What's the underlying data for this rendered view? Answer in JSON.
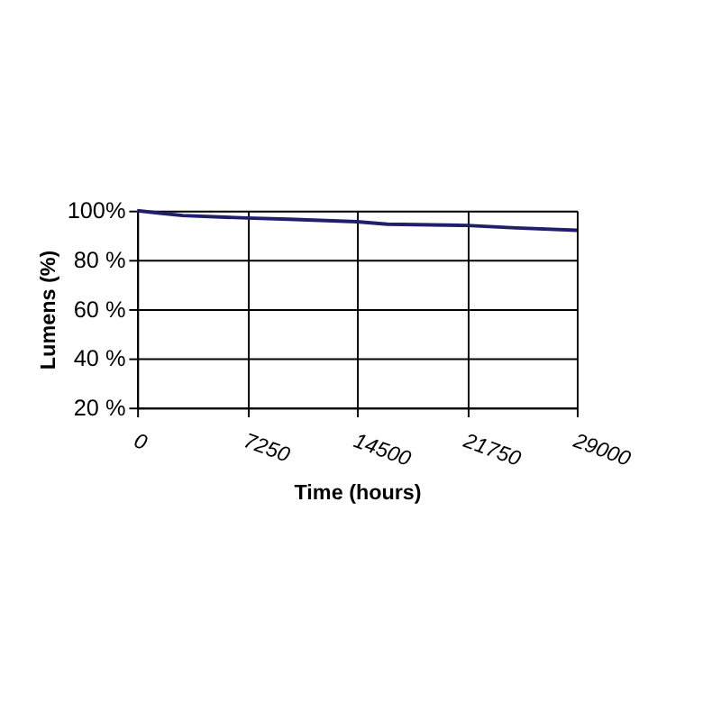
{
  "chart_data": {
    "type": "line",
    "xlabel": "Time (hours)",
    "ylabel": "Lumens (%)",
    "x": [
      0,
      1500,
      3000,
      7250,
      10000,
      14500,
      16500,
      21750,
      25000,
      29000
    ],
    "series": [
      {
        "color": "#1f1f6b",
        "values": [
          100,
          99,
          98,
          97,
          96.5,
          95.5,
          94.5,
          94,
          93,
          92
        ]
      }
    ],
    "xlim": [
      0,
      29000
    ],
    "xticks": [
      0,
      7250,
      14500,
      21750,
      29000
    ],
    "ylim": [
      20,
      100
    ],
    "yticks": [
      {
        "value": 20,
        "label": "20 %"
      },
      {
        "value": 40,
        "label": "40 %"
      },
      {
        "value": 60,
        "label": "60 %"
      },
      {
        "value": 80,
        "label": "80 %"
      },
      {
        "value": 100,
        "label": "100%"
      }
    ],
    "grid": true,
    "marker": "none",
    "line_style": "solid"
  }
}
